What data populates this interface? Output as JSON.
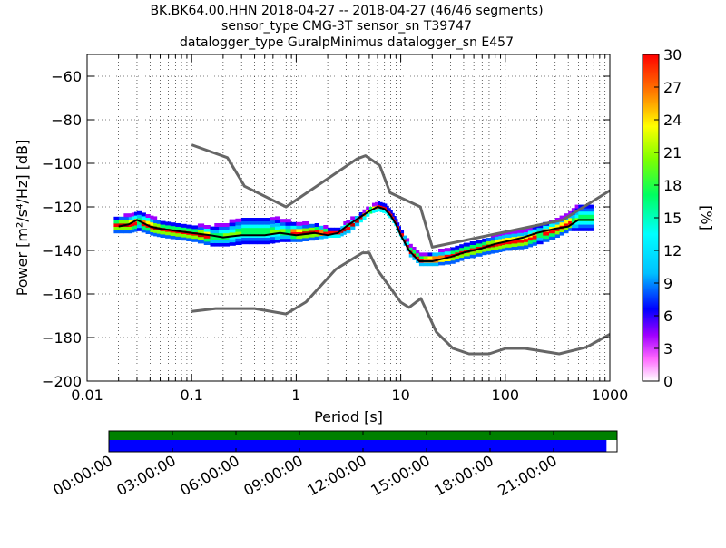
{
  "chart_data": {
    "type": "heatmap",
    "title_lines": [
      "BK.BK64.00.HHN   2018-04-27 -- 2018-04-27  (46/46 segments)",
      "sensor_type CMG-3T sensor_sn T39747",
      "datalogger_type GuralpMinimus datalogger_sn E457"
    ],
    "xlabel": "Period [s]",
    "ylabel": "Power [m²/s⁴/Hz] [dB]",
    "x_scale": "log",
    "xlim": [
      0.01,
      1000
    ],
    "ylim": [
      -200,
      -50
    ],
    "x_ticks": [
      0.01,
      0.1,
      1,
      10,
      100,
      1000
    ],
    "x_tick_labels": [
      "0.01",
      "0.1",
      "1",
      "10",
      "100",
      "1000"
    ],
    "y_ticks": [
      -200,
      -180,
      -160,
      -140,
      -120,
      -100,
      -80,
      -60
    ],
    "y_tick_labels": [
      "−200",
      "−180",
      "−160",
      "−140",
      "−120",
      "−100",
      "−80",
      "−60"
    ],
    "grid": true,
    "colorbar": {
      "label": "[%]",
      "range": [
        0,
        30
      ],
      "ticks": [
        0,
        3,
        6,
        9,
        12,
        15,
        18,
        21,
        24,
        27,
        30
      ],
      "tick_labels": [
        "0",
        "3",
        "6",
        "9",
        "12",
        "15",
        "18",
        "21",
        "24",
        "27",
        "30"
      ]
    },
    "noise_model_high": {
      "name": "NHNM",
      "x": [
        0.1,
        0.22,
        0.32,
        0.8,
        3.8,
        4.6,
        6.3,
        7.9,
        15.4,
        20,
        354.8,
        1000
      ],
      "y": [
        -91.5,
        -97.4,
        -110.5,
        -120,
        -98,
        -96.5,
        -101,
        -113.5,
        -120,
        -138.5,
        -126,
        -112.5
      ]
    },
    "noise_model_low": {
      "name": "NLNM",
      "x": [
        0.1,
        0.17,
        0.4,
        0.8,
        1.24,
        2.4,
        4.3,
        5,
        6,
        10,
        12,
        15.6,
        21.9,
        31.6,
        45,
        70,
        101,
        154,
        328,
        600,
        1000
      ],
      "y": [
        -168,
        -166.7,
        -166.7,
        -169.2,
        -163.7,
        -148.6,
        -141.1,
        -141.1,
        -149,
        -163.8,
        -166.2,
        -162.1,
        -177.5,
        -185,
        -187.5,
        -187.5,
        -185,
        -185,
        -187.5,
        -184.4,
        -178.5
      ]
    },
    "mode_curve": {
      "x": [
        0.02,
        0.025,
        0.03,
        0.04,
        0.05,
        0.07,
        0.1,
        0.15,
        0.2,
        0.3,
        0.5,
        0.7,
        1,
        1.5,
        2,
        2.5,
        3,
        4,
        5,
        6,
        7,
        8,
        9,
        10,
        12,
        15,
        20,
        30,
        40,
        60,
        80,
        100,
        150,
        200,
        300,
        400,
        500,
        700
      ],
      "y": [
        -129,
        -128,
        -126,
        -129,
        -130,
        -131,
        -132,
        -133,
        -134,
        -133,
        -133,
        -132,
        -133,
        -132,
        -133,
        -132,
        -129,
        -125,
        -122,
        -120,
        -121,
        -124,
        -128,
        -133,
        -140,
        -145,
        -145,
        -143,
        -141,
        -139,
        -137,
        -136,
        -134,
        -132,
        -130,
        -129,
        -126,
        -126
      ]
    },
    "pdf_band": {
      "x": [
        0.018,
        0.025,
        0.03,
        0.04,
        0.05,
        0.07,
        0.1,
        0.15,
        0.2,
        0.3,
        0.5,
        0.7,
        1,
        1.5,
        2,
        2.5,
        3,
        4,
        5,
        6,
        7,
        8,
        9,
        10,
        12,
        15,
        20,
        30,
        40,
        60,
        80,
        100,
        150,
        200,
        300,
        400,
        500,
        700
      ],
      "y_top": [
        -125,
        -124,
        -122,
        -125,
        -127,
        -128,
        -129,
        -129,
        -128,
        -125,
        -125,
        -126,
        -128,
        -128,
        -130,
        -130,
        -127,
        -123,
        -120,
        -118,
        -119,
        -122,
        -126,
        -131,
        -138,
        -142,
        -141,
        -139,
        -137,
        -135,
        -133,
        -132,
        -131,
        -128,
        -126,
        -123,
        -119,
        -119
      ],
      "y_bottom": [
        -132,
        -132,
        -131,
        -133,
        -134,
        -135,
        -136,
        -138,
        -138,
        -137,
        -137,
        -136,
        -136,
        -135,
        -134,
        -134,
        -132,
        -127,
        -123,
        -122,
        -123,
        -126,
        -130,
        -135,
        -143,
        -147,
        -147,
        -146,
        -144,
        -142,
        -141,
        -140,
        -139,
        -137,
        -134,
        -131,
        -131,
        -131
      ]
    }
  },
  "timeline": {
    "tick_labels": [
      "00:00:00",
      "03:00:00",
      "06:00:00",
      "09:00:00",
      "12:00:00",
      "15:00:00",
      "18:00:00",
      "21:00:00"
    ],
    "tick_hours": [
      0,
      3,
      6,
      9,
      12,
      15,
      18,
      21
    ],
    "range_hours": [
      0,
      24
    ],
    "rows": [
      {
        "name": "data-availability",
        "color": "#008000",
        "coverage_hours": [
          [
            0,
            24
          ]
        ]
      },
      {
        "name": "psd-segments",
        "color": "#0000ff",
        "coverage_hours": [
          [
            0,
            23.5
          ]
        ]
      }
    ]
  },
  "colors": {
    "noise_model": "#666666",
    "mode_curve": "#000000"
  }
}
